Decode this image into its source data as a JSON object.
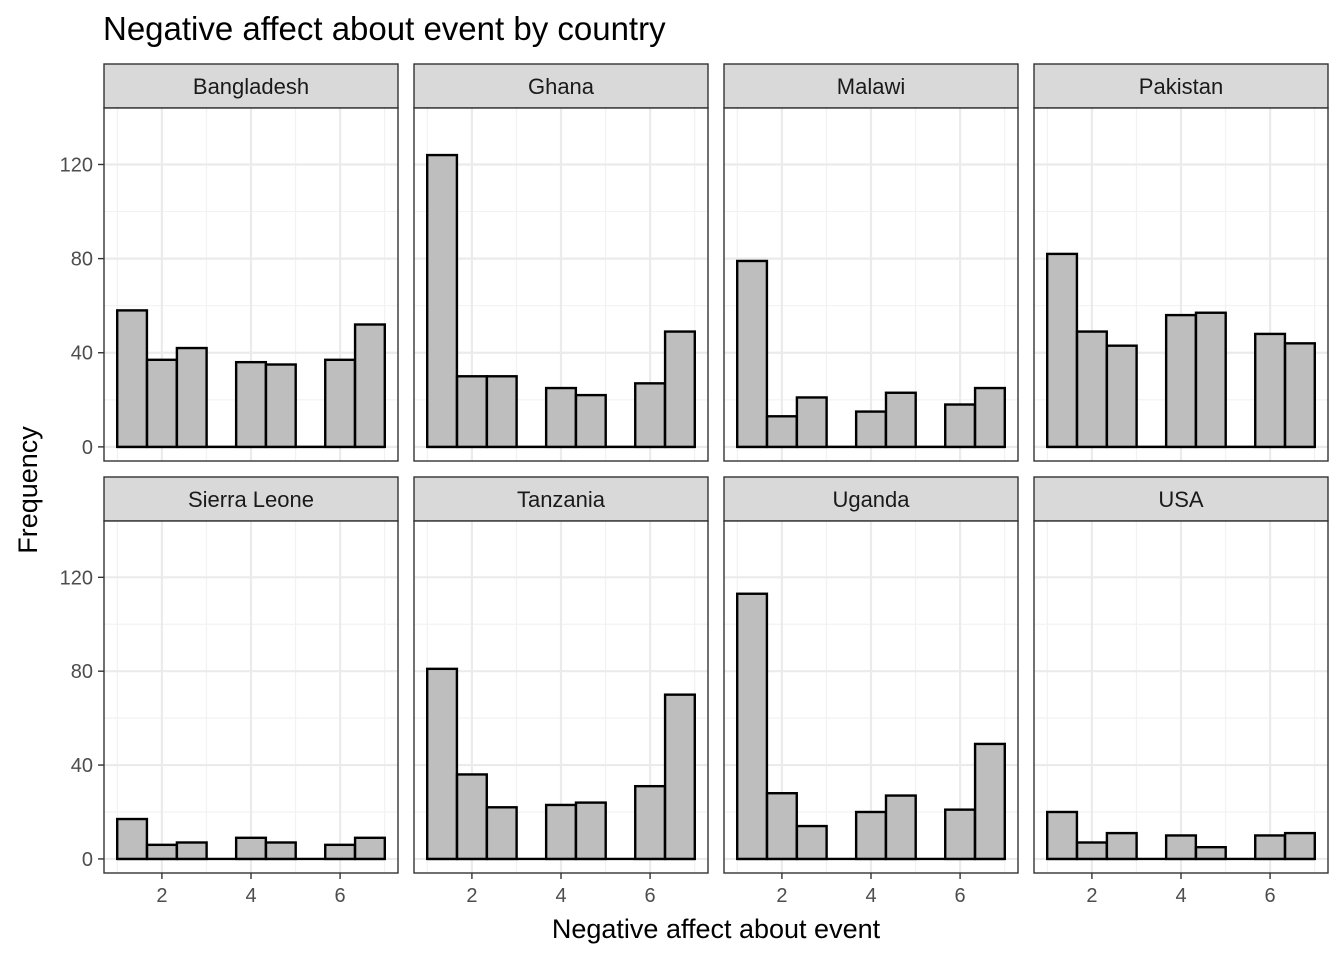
{
  "chart_data": {
    "type": "bar",
    "title": "Negative affect about event by country",
    "xlabel": "Negative affect about event",
    "ylabel": "Frequency",
    "bin_width": 0.667,
    "bin_centers": [
      1.33,
      2.0,
      2.67,
      3.33,
      4.0,
      4.67,
      5.33,
      6.0,
      6.67
    ],
    "xlim": [
      0.7,
      7.3
    ],
    "ylim": [
      -6,
      144
    ],
    "x_ticks": [
      2,
      4,
      6
    ],
    "y_ticks": [
      0,
      40,
      80,
      120
    ],
    "grid": true,
    "colors": {
      "bar_fill": "#bebebe",
      "bar_stroke": "#000000",
      "strip_fill": "#d9d9d9",
      "grid": "#ebebeb",
      "panel_border": "#333333"
    },
    "panels": [
      {
        "name": "Bangladesh",
        "values": [
          58,
          37,
          42,
          0,
          36,
          35,
          0,
          37,
          52
        ]
      },
      {
        "name": "Ghana",
        "values": [
          124,
          30,
          30,
          0,
          25,
          22,
          0,
          27,
          49
        ]
      },
      {
        "name": "Malawi",
        "values": [
          79,
          13,
          21,
          0,
          15,
          23,
          0,
          18,
          25
        ]
      },
      {
        "name": "Pakistan",
        "values": [
          82,
          49,
          43,
          0,
          56,
          57,
          0,
          48,
          44
        ]
      },
      {
        "name": "Sierra Leone",
        "values": [
          17,
          6,
          7,
          0,
          9,
          7,
          0,
          6,
          9
        ]
      },
      {
        "name": "Tanzania",
        "values": [
          81,
          36,
          22,
          0,
          23,
          24,
          0,
          31,
          70
        ]
      },
      {
        "name": "Uganda",
        "values": [
          113,
          28,
          14,
          0,
          20,
          27,
          0,
          21,
          49
        ]
      },
      {
        "name": "USA",
        "values": [
          20,
          7,
          11,
          0,
          10,
          5,
          0,
          10,
          11
        ]
      }
    ]
  }
}
